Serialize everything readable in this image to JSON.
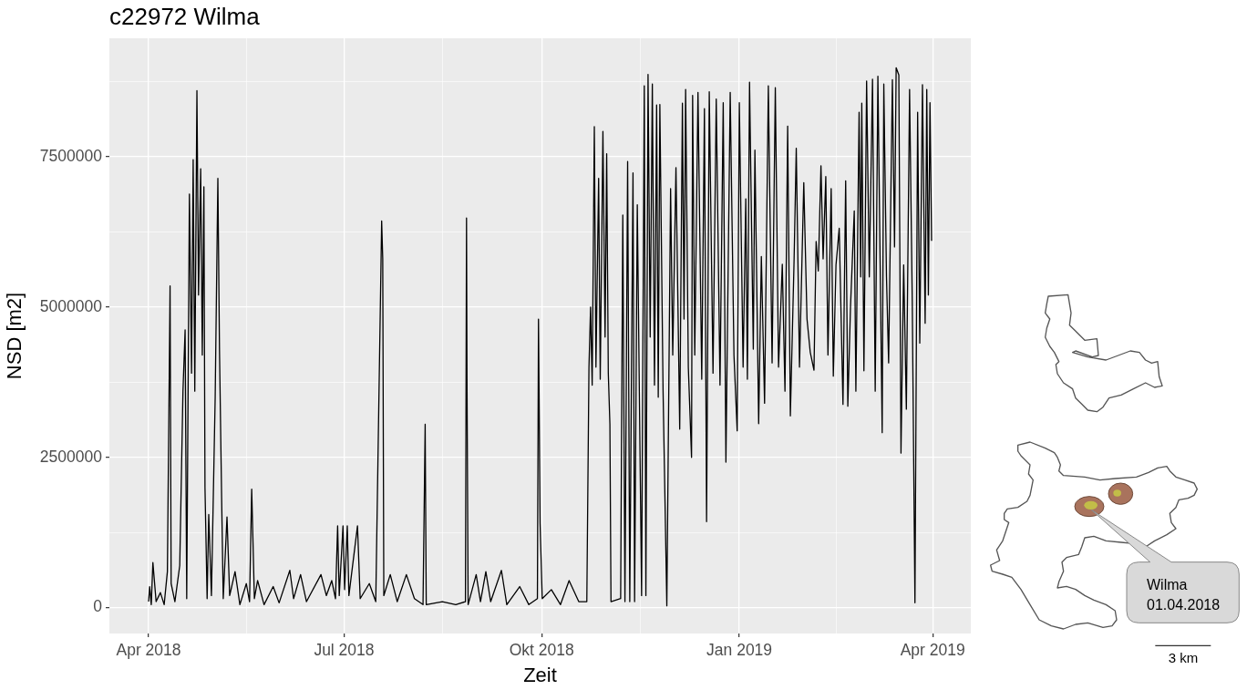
{
  "chart_data": {
    "type": "line",
    "title": "c22972 Wilma",
    "xlabel": "Zeit",
    "ylabel": "NSD [m2]",
    "color": "#000000",
    "grid": true,
    "xlim": [
      "2018-03-13T18:00",
      "2019-04-18T18:00"
    ],
    "xticks": [
      {
        "value": "2018-04-01",
        "label": "Apr 2018"
      },
      {
        "value": "2018-05-16T12:00",
        "label": null
      },
      {
        "value": "2018-07-01",
        "label": "Jul 2018"
      },
      {
        "value": "2018-08-16",
        "label": null
      },
      {
        "value": "2018-10-01",
        "label": "Okt 2018"
      },
      {
        "value": "2018-11-16",
        "label": null
      },
      {
        "value": "2019-01-01",
        "label": "Jan 2019"
      },
      {
        "value": "2019-02-15",
        "label": null
      },
      {
        "value": "2019-04-01",
        "label": "Apr 2019"
      }
    ],
    "ylim": [
      -430000,
      9470000
    ],
    "yticks": [
      0,
      {
        "value": 1250000,
        "label": null
      },
      2500000,
      {
        "value": 3750000,
        "label": null
      },
      5000000,
      {
        "value": 6250000,
        "label": null
      },
      7500000,
      {
        "value": 8750000,
        "label": null
      }
    ],
    "x": [
      "2018-04-01",
      "2018-04-01T12:00",
      "2018-04-02T06:00",
      "2018-04-03",
      "2018-04-04T12:00",
      "2018-04-06T12:00",
      "2018-04-08T06:00",
      "2018-04-09T18:00",
      "2018-04-11",
      "2018-04-11T12:00",
      "2018-04-13T06:00",
      "2018-04-15T12:00",
      "2018-04-17",
      "2018-04-18",
      "2018-04-18T18:00",
      "2018-04-20",
      "2018-04-21",
      "2018-04-21T18:00",
      "2018-04-22T12:00",
      "2018-04-23T12:00",
      "2018-04-24T06:00",
      "2018-04-25T06:00",
      "2018-04-26",
      "2018-04-26T18:00",
      "2018-04-27T06:00",
      "2018-04-28T06:00",
      "2018-04-29",
      "2018-04-30T06:00",
      "2018-05-02",
      "2018-05-03T06:00",
      "2018-05-04",
      "2018-05-05",
      "2018-05-05T18:00",
      "2018-05-07T12:00",
      "2018-05-08T18:00",
      "2018-05-11T06:00",
      "2018-05-13T12:00",
      "2018-05-16T12:00",
      "2018-05-18",
      "2018-05-19",
      "2018-05-20T06:00",
      "2018-05-21T18:00",
      "2018-05-24T18:00",
      "2018-05-29",
      "2018-05-31T18:00",
      "2018-06-05T18:00",
      "2018-06-07T12:00",
      "2018-06-10T18:00",
      "2018-06-13T12:00",
      "2018-06-20T06:00",
      "2018-06-22T18:00",
      "2018-06-25T06:00",
      "2018-06-27",
      "2018-06-28",
      "2018-06-28T18:00",
      "2018-06-30T12:00",
      "2018-07-01T06:00",
      "2018-07-02T12:00",
      "2018-07-03T06:00",
      "2018-07-07T06:00",
      "2018-07-08T12:00",
      "2018-07-12T18:00",
      "2018-07-15T18:00",
      "2018-07-18T12:00",
      "2018-07-19",
      "2018-07-19T12:00",
      "2018-07-22T12:00",
      "2018-07-25T18:00",
      "2018-07-30",
      "2018-08-02T18:00",
      "2018-08-06T18:00",
      "2018-08-07T18:00",
      "2018-08-08T06:00",
      "2018-08-15T18:00",
      "2018-08-22",
      "2018-08-26T12:00",
      "2018-08-27",
      "2018-08-27T06:00",
      "2018-08-27T18:00",
      "2018-08-31T12:00",
      "2018-09-02T12:00",
      "2018-09-05",
      "2018-09-07T06:00",
      "2018-09-12T06:00",
      "2018-09-14T18:00",
      "2018-09-20T18:00",
      "2018-09-25",
      "2018-09-29",
      "2018-09-29T12:00",
      "2018-09-30T06:00",
      "2018-10-01T06:00",
      "2018-10-05T12:00",
      "2018-10-09T18:00",
      "2018-10-13T18:00",
      "2018-10-18T06:00",
      "2018-10-22",
      "2018-10-23",
      "2018-10-23T18:00",
      "2018-10-24T12:00",
      "2018-10-25T12:00",
      "2018-10-26T06:00",
      "2018-10-27T12:00",
      "2018-10-28T06:00",
      "2018-10-29T12:00",
      "2018-10-30T12:00",
      "2018-10-31T06:00",
      "2018-11-01",
      "2018-11-01T18:00",
      "2018-11-02T06:00",
      "2018-11-06T18:00",
      "2018-11-07T18:00",
      "2018-11-08T18:00",
      "2018-11-10",
      "2018-11-11",
      "2018-11-12T12:00",
      "2018-11-13T06:00",
      "2018-11-14T12:00",
      "2018-11-16T12:00",
      "2018-11-17T18:00",
      "2018-11-18T12:00",
      "2018-11-19T12:00",
      "2018-11-20T12:00",
      "2018-11-21T12:00",
      "2018-11-22T12:00",
      "2018-11-23T12:00",
      "2018-11-24T06:00",
      "2018-11-25",
      "2018-11-26T12:00",
      "2018-11-28T06:00",
      "2018-11-30",
      "2018-12-01",
      "2018-12-02T12:00",
      "2018-12-04T06:00",
      "2018-12-05T12:00",
      "2018-12-06T06:00",
      "2018-12-07",
      "2018-12-08T06:00",
      "2018-12-09T18:00",
      "2018-12-10T06:00",
      "2018-12-11T06:00",
      "2018-12-12T18:00",
      "2018-12-14T12:00",
      "2018-12-15T18:00",
      "2018-12-16T18:00",
      "2018-12-18",
      "2018-12-19T18:00",
      "2018-12-21T06:00",
      "2018-12-23",
      "2018-12-24T12:00",
      "2018-12-25T18:00",
      "2018-12-27T18:00",
      "2018-12-29T12:00",
      "2018-12-31",
      "2019-01-01",
      "2019-01-02T18:00",
      "2019-01-04",
      "2019-01-04T18:00",
      "2019-01-05T18:00",
      "2019-01-07T12:00",
      "2019-01-08T06:00",
      "2019-01-10",
      "2019-01-11T06:00",
      "2019-01-12T18:00",
      "2019-01-14T12:00",
      "2019-01-16T06:00",
      "2019-01-17T18:00",
      "2019-01-19T06:00",
      "2019-01-21",
      "2019-01-22T06:00",
      "2019-01-23T12:00",
      "2019-01-24T18:00",
      "2019-01-26T12:00",
      "2019-01-27T12:00",
      "2019-01-29",
      "2019-01-31",
      "2019-02-01T12:00",
      "2019-02-03",
      "2019-02-04T18:00",
      "2019-02-05T18:00",
      "2019-02-06T18:00",
      "2019-02-08",
      "2019-02-09",
      "2019-02-10T06:00",
      "2019-02-11T06:00",
      "2019-02-12T18:00",
      "2019-02-13T18:00",
      "2019-02-15",
      "2019-02-16T12:00",
      "2019-02-18T06:00",
      "2019-02-19T12:00",
      "2019-02-20T12:00",
      "2019-02-21T18:00",
      "2019-02-23T12:00",
      "2019-02-24T06:00",
      "2019-02-25T18:00",
      "2019-02-26T12:00",
      "2019-02-27",
      "2019-02-28",
      "2019-03-01T06:00",
      "2019-03-02T12:00",
      "2019-03-04",
      "2019-03-05T06:00",
      "2019-03-06T12:00",
      "2019-03-08T12:00",
      "2019-03-09T06:00",
      "2019-03-10T12:00",
      "2019-03-11T12:00",
      "2019-03-13T06:00",
      "2019-03-14T06:00",
      "2019-03-15",
      "2019-03-16T06:00",
      "2019-03-17T06:00",
      "2019-03-18T12:00",
      "2019-03-19T18:00",
      "2019-03-21T06:00",
      "2019-03-22T12:00",
      "2019-03-23T18:00",
      "2019-03-25",
      "2019-03-26",
      "2019-03-27T06:00",
      "2019-03-28T12:00",
      "2019-03-29T06:00",
      "2019-03-30",
      "2019-03-30T18:00",
      "2019-03-31T12:00"
    ],
    "values": [
      100000,
      350000,
      50000,
      750000,
      100000,
      250000,
      50000,
      600000,
      5350000,
      400000,
      100000,
      700000,
      3600000,
      4620000,
      150000,
      6880000,
      3900000,
      7450000,
      3600000,
      8600000,
      5200000,
      7300000,
      4200000,
      7000000,
      2000000,
      150000,
      1550000,
      200000,
      3500000,
      7140000,
      4300000,
      1830000,
      150000,
      1510000,
      200000,
      600000,
      50000,
      400000,
      100000,
      1970000,
      150000,
      450000,
      50000,
      350000,
      80000,
      620000,
      150000,
      550000,
      100000,
      550000,
      200000,
      450000,
      150000,
      1360000,
      200000,
      1360000,
      300000,
      1360000,
      200000,
      1360000,
      150000,
      400000,
      100000,
      6430000,
      5800000,
      200000,
      550000,
      100000,
      550000,
      150000,
      50000,
      3050000,
      50000,
      100000,
      50000,
      100000,
      6480000,
      3600000,
      50000,
      550000,
      100000,
      600000,
      100000,
      620000,
      50000,
      350000,
      50000,
      150000,
      4800000,
      1400000,
      150000,
      300000,
      50000,
      450000,
      100000,
      100000,
      4000000,
      5000000,
      3700000,
      8000000,
      4000000,
      7140000,
      3800000,
      7920000,
      4500000,
      7550000,
      3900000,
      3050000,
      100000,
      150000,
      6530000,
      100000,
      7420000,
      100000,
      7230000,
      100000,
      6700000,
      200000,
      8680000,
      200000,
      8870000,
      4500000,
      8710000,
      3700000,
      8360000,
      3500000,
      8370000,
      3600000,
      30000,
      6970000,
      4200000,
      7320000,
      2970000,
      8390000,
      4800000,
      8620000,
      4000000,
      2500000,
      8520000,
      4200000,
      8570000,
      3800000,
      8300000,
      1430000,
      8580000,
      3900000,
      8460000,
      3700000,
      8400000,
      2420000,
      8570000,
      4200000,
      2940000,
      8400000,
      4000000,
      6800000,
      3800000,
      8740000,
      4300000,
      7610000,
      3060000,
      5840000,
      3400000,
      8680000,
      4070000,
      8650000,
      4000000,
      5710000,
      3600000,
      8010000,
      3190000,
      5800000,
      7640000,
      4000000,
      7070000,
      4800000,
      4250000,
      3950000,
      6090000,
      5600000,
      7350000,
      5800000,
      7170000,
      4200000,
      6970000,
      3850000,
      5700000,
      6310000,
      3380000,
      7100000,
      3350000,
      5000000,
      6600000,
      3600000,
      8240000,
      5500000,
      8390000,
      3940000,
      8760000,
      5500000,
      8790000,
      3600000,
      8840000,
      2910000,
      8710000,
      5500000,
      4070000,
      8780000,
      6000000,
      8980000,
      8860000,
      2570000,
      5700000,
      3300000,
      8620000,
      5100000,
      80000,
      8240000,
      4400000,
      8700000,
      4730000,
      8620000,
      5200000,
      8400000,
      6100000
    ],
    "annotations": [
      "Wilma 01.04.2018",
      "3 km"
    ]
  }
}
